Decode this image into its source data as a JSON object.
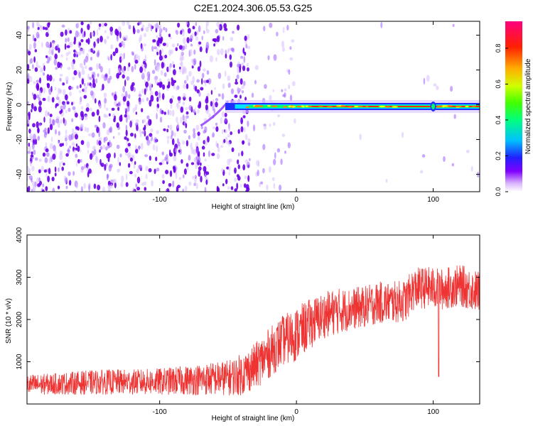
{
  "page": {
    "title": "C2E1.2024.306.05.53.G25"
  },
  "chart_data": [
    {
      "type": "heatmap",
      "title": "C2E1.2024.306.05.53.G25",
      "xlabel": "Height of straight line (km)",
      "ylabel": "Frequency (Hz)",
      "xlim": [
        -197,
        134
      ],
      "ylim": [
        -50,
        48
      ],
      "x_ticks": [
        -100,
        0,
        100
      ],
      "y_ticks": [
        -40,
        -20,
        0,
        20,
        40
      ],
      "colorbar": {
        "label": "Normalized spectral amplitude",
        "range": [
          0,
          0.95
        ],
        "ticks": [
          0,
          0.2,
          0.4,
          0.6,
          0.8
        ],
        "colors": [
          "#ffffff",
          "#8000ff",
          "#0000ff",
          "#00ffff",
          "#00ff00",
          "#ffff00",
          "#ff8000",
          "#ff0000",
          "#ff0080"
        ]
      },
      "signal_band": {
        "x_start": -62,
        "x_end": 134,
        "center_frequency": -1,
        "description_noise_region_end": 0
      }
    },
    {
      "type": "line",
      "xlabel": "Height of straight line (km)",
      "ylabel": "SNR (10 * v/v)",
      "xlim": [
        -197,
        134
      ],
      "ylim": [
        0,
        4000
      ],
      "x_ticks": [
        -100,
        0,
        100
      ],
      "y_ticks": [
        1000,
        2000,
        3000,
        4000
      ],
      "series": [
        {
          "color": "#ee3333",
          "x": [
            -197,
            -180,
            -160,
            -140,
            -120,
            -100,
            -80,
            -60,
            -50,
            -40,
            -30,
            -20,
            -10,
            0,
            10,
            20,
            30,
            40,
            50,
            60,
            70,
            80,
            85,
            90,
            100,
            105,
            110,
            120,
            134
          ],
          "mean": [
            450,
            470,
            500,
            520,
            520,
            530,
            560,
            600,
            620,
            700,
            900,
            1200,
            1500,
            1650,
            1900,
            2100,
            2200,
            2250,
            2300,
            2400,
            2400,
            2450,
            2700,
            2750,
            2750,
            2700,
            2750,
            2800,
            2650
          ],
          "spread": [
            250,
            250,
            280,
            300,
            300,
            320,
            350,
            400,
            420,
            500,
            550,
            600,
            600,
            650,
            600,
            550,
            550,
            500,
            500,
            500,
            500,
            500,
            500,
            500,
            500,
            500,
            500,
            500,
            500
          ],
          "min_dip": {
            "x": 104,
            "y": 650
          }
        }
      ]
    }
  ]
}
